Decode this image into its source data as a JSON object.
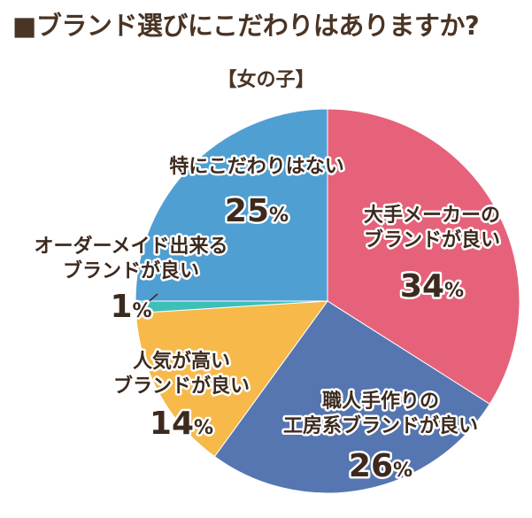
{
  "header": {
    "title": "■ブランド選びにこだわりはありますか?",
    "subtitle": "【女の子】"
  },
  "chart_data": {
    "type": "pie",
    "title": "■ブランド選びにこだわりはありますか?",
    "subtitle": "【女の子】",
    "slices": [
      {
        "label_lines": [
          "大手メーカーの",
          "ブランドが良い"
        ],
        "value": 34,
        "unit": "%",
        "color": "#e6627a"
      },
      {
        "label_lines": [
          "職人手作りの",
          "工房系ブランドが良い"
        ],
        "value": 26,
        "unit": "%",
        "color": "#5676b1"
      },
      {
        "label_lines": [
          "人気が高い",
          "ブランドが良い"
        ],
        "value": 14,
        "unit": "%",
        "color": "#f6b94a"
      },
      {
        "label_lines": [
          "オーダーメイド出来る",
          "ブランドが良い"
        ],
        "value": 1,
        "unit": "%",
        "color": "#3ebfb8"
      },
      {
        "label_lines": [
          "特にこだわりはない"
        ],
        "value": 25,
        "unit": "%",
        "color": "#4f9fd3"
      }
    ],
    "start_angle_deg": 0,
    "direction": "clockwise",
    "legend": "none"
  }
}
